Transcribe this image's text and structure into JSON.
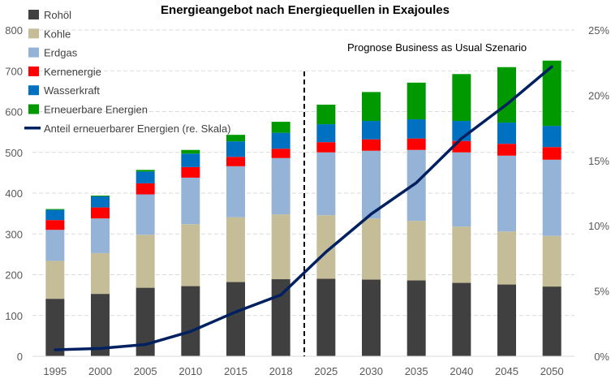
{
  "chart_data": {
    "type": "bar",
    "stacked": true,
    "title": "Energieangebot nach Energiequellen in Exajoules",
    "annotation": "Prognose Business as Usual Szenario",
    "categories": [
      "1995",
      "2000",
      "2005",
      "2010",
      "2015",
      "2018",
      "2025",
      "2030",
      "2035",
      "2040",
      "2045",
      "2050"
    ],
    "ylim": [
      0,
      800
    ],
    "yticks": [
      "0",
      "100",
      "200",
      "300",
      "400",
      "500",
      "600",
      "700",
      "800"
    ],
    "y2lim": [
      0,
      25
    ],
    "y2ticks": [
      "0%",
      "5%",
      "10%",
      "15%",
      "20%",
      "25%"
    ],
    "series": [
      {
        "name": "Rohöl",
        "color": "#404040",
        "values": [
          141,
          153,
          168,
          172,
          182,
          189,
          190,
          188,
          186,
          180,
          176,
          171
        ]
      },
      {
        "name": "Kohle",
        "color": "#c4bd97",
        "values": [
          93,
          100,
          130,
          152,
          159,
          159,
          156,
          150,
          146,
          138,
          130,
          124
        ]
      },
      {
        "name": "Erdgas",
        "color": "#95b3d7",
        "values": [
          76,
          85,
          99,
          114,
          125,
          138,
          154,
          166,
          174,
          182,
          186,
          187
        ]
      },
      {
        "name": "Kernenergie",
        "color": "#ff0000",
        "values": [
          24,
          27,
          27,
          26,
          23,
          23,
          25,
          28,
          28,
          28,
          29,
          31
        ]
      },
      {
        "name": "Wasserkraft",
        "color": "#0070c0",
        "values": [
          25,
          27,
          29,
          33,
          38,
          39,
          44,
          45,
          47,
          49,
          52,
          52
        ]
      },
      {
        "name": "Erneuerbare Energien",
        "color": "#009900",
        "values": [
          2,
          2,
          4,
          9,
          16,
          27,
          48,
          71,
          90,
          115,
          136,
          160
        ]
      }
    ],
    "line": {
      "name": "Anteil erneuerbarer Energien (re. Skala)",
      "color": "#002060",
      "axis": "right",
      "unit": "%",
      "values": [
        0.5,
        0.6,
        0.9,
        1.9,
        3.4,
        4.7,
        8.0,
        10.9,
        13.3,
        16.7,
        19.3,
        22.2
      ]
    },
    "forecast_divider_after": "2018",
    "grid": true,
    "legend": "top-left"
  }
}
